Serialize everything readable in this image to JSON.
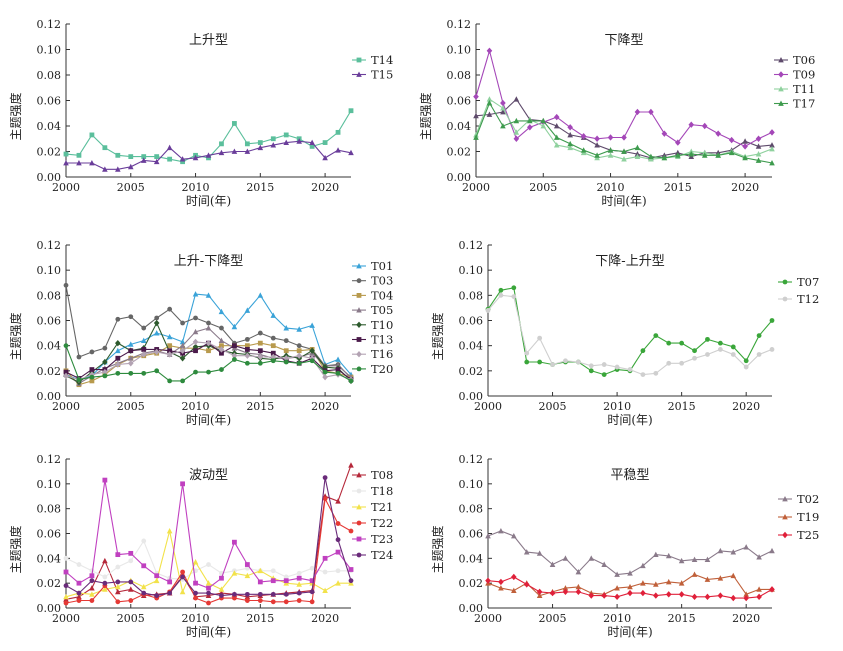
{
  "chart_data": [
    {
      "type": "line",
      "title": "上升型",
      "xlabel": "时间(年)",
      "ylabel": "主题强度",
      "xlim": [
        2000,
        2022
      ],
      "ylim": [
        0,
        0.12
      ],
      "xticks": [
        "2000",
        "2005",
        "2010",
        "2015",
        "2020"
      ],
      "yticks": [
        "0.00",
        "0.02",
        "0.04",
        "0.06",
        "0.08",
        "0.10",
        "0.12"
      ],
      "legend": "right",
      "x": [
        2000,
        2001,
        2002,
        2003,
        2004,
        2005,
        2006,
        2007,
        2008,
        2009,
        2010,
        2011,
        2012,
        2013,
        2014,
        2015,
        2016,
        2017,
        2018,
        2019,
        2020,
        2021,
        2022
      ],
      "series": [
        {
          "name": "T14",
          "color": "#5bbf9c",
          "marker": "square",
          "values": [
            0.018,
            0.017,
            0.033,
            0.023,
            0.017,
            0.016,
            0.016,
            0.016,
            0.014,
            0.012,
            0.017,
            0.015,
            0.026,
            0.042,
            0.026,
            0.027,
            0.03,
            0.033,
            0.03,
            0.024,
            0.027,
            0.035,
            0.052
          ]
        },
        {
          "name": "T15",
          "color": "#6a3d9a",
          "marker": "triangle",
          "values": [
            0.011,
            0.011,
            0.011,
            0.006,
            0.006,
            0.008,
            0.013,
            0.012,
            0.023,
            0.014,
            0.015,
            0.017,
            0.019,
            0.02,
            0.02,
            0.023,
            0.025,
            0.027,
            0.028,
            0.027,
            0.015,
            0.021,
            0.019
          ]
        }
      ]
    },
    {
      "type": "line",
      "title": "下降型",
      "xlabel": "时间(年)",
      "ylabel": "主题强度",
      "xlim": [
        2000,
        2022
      ],
      "ylim": [
        0,
        0.12
      ],
      "xticks": [
        "2000",
        "2005",
        "2010",
        "2015",
        "2020"
      ],
      "yticks": [
        "0.00",
        "0.02",
        "0.04",
        "0.06",
        "0.08",
        "0.10",
        "0.12"
      ],
      "legend": "right",
      "x": [
        2000,
        2001,
        2002,
        2003,
        2004,
        2005,
        2006,
        2007,
        2008,
        2009,
        2010,
        2011,
        2012,
        2013,
        2014,
        2015,
        2016,
        2017,
        2018,
        2019,
        2020,
        2021,
        2022
      ],
      "series": [
        {
          "name": "T06",
          "color": "#5e4a6b",
          "marker": "triangle",
          "values": [
            0.048,
            0.049,
            0.051,
            0.061,
            0.045,
            0.044,
            0.04,
            0.033,
            0.031,
            0.025,
            0.021,
            0.02,
            0.018,
            0.015,
            0.017,
            0.019,
            0.016,
            0.019,
            0.019,
            0.021,
            0.028,
            0.024,
            0.025
          ]
        },
        {
          "name": "T09",
          "color": "#a447b8",
          "marker": "diamond",
          "values": [
            0.063,
            0.099,
            0.058,
            0.03,
            0.039,
            0.043,
            0.047,
            0.039,
            0.032,
            0.03,
            0.031,
            0.031,
            0.051,
            0.051,
            0.034,
            0.027,
            0.041,
            0.04,
            0.034,
            0.029,
            0.024,
            0.03,
            0.035
          ]
        },
        {
          "name": "T11",
          "color": "#8fd19e",
          "marker": "triangle",
          "values": [
            0.033,
            0.061,
            0.054,
            0.035,
            0.045,
            0.04,
            0.025,
            0.023,
            0.019,
            0.015,
            0.017,
            0.014,
            0.016,
            0.014,
            0.015,
            0.016,
            0.02,
            0.019,
            0.017,
            0.02,
            0.016,
            0.018,
            0.022
          ]
        },
        {
          "name": "T17",
          "color": "#3e9b4e",
          "marker": "triangle",
          "values": [
            0.031,
            0.058,
            0.04,
            0.044,
            0.044,
            0.044,
            0.031,
            0.026,
            0.021,
            0.017,
            0.021,
            0.02,
            0.023,
            0.016,
            0.015,
            0.017,
            0.018,
            0.017,
            0.017,
            0.019,
            0.015,
            0.013,
            0.011
          ]
        }
      ]
    },
    {
      "type": "line",
      "title": "上升-下降型",
      "xlabel": "时间(年)",
      "ylabel": "主题强度",
      "xlim": [
        2000,
        2022
      ],
      "ylim": [
        0,
        0.12
      ],
      "xticks": [
        "2000",
        "2005",
        "2010",
        "2015",
        "2020"
      ],
      "yticks": [
        "0.00",
        "0.02",
        "0.04",
        "0.06",
        "0.08",
        "0.10",
        "0.12"
      ],
      "legend": "right",
      "x": [
        2000,
        2001,
        2002,
        2003,
        2004,
        2005,
        2006,
        2007,
        2008,
        2009,
        2010,
        2011,
        2012,
        2013,
        2014,
        2015,
        2016,
        2017,
        2018,
        2019,
        2020,
        2021,
        2022
      ],
      "series": [
        {
          "name": "T01",
          "color": "#3aa3d8",
          "marker": "triangle",
          "values": [
            0.017,
            0.013,
            0.016,
            0.027,
            0.036,
            0.041,
            0.044,
            0.05,
            0.047,
            0.043,
            0.081,
            0.08,
            0.067,
            0.055,
            0.068,
            0.08,
            0.064,
            0.054,
            0.053,
            0.056,
            0.025,
            0.029,
            0.017
          ]
        },
        {
          "name": "T03",
          "color": "#666666",
          "marker": "circle",
          "values": [
            0.088,
            0.031,
            0.035,
            0.038,
            0.061,
            0.063,
            0.054,
            0.062,
            0.069,
            0.058,
            0.062,
            0.058,
            0.054,
            0.042,
            0.045,
            0.05,
            0.046,
            0.044,
            0.04,
            0.037,
            0.024,
            0.025,
            0.014
          ]
        },
        {
          "name": "T04",
          "color": "#b89a4d",
          "marker": "square",
          "values": [
            0.02,
            0.009,
            0.012,
            0.017,
            0.025,
            0.03,
            0.032,
            0.034,
            0.04,
            0.038,
            0.038,
            0.036,
            0.04,
            0.04,
            0.04,
            0.042,
            0.04,
            0.036,
            0.036,
            0.037,
            0.02,
            0.018,
            0.015
          ]
        },
        {
          "name": "T05",
          "color": "#8a7a8a",
          "marker": "triangle",
          "values": [
            0.017,
            0.01,
            0.016,
            0.022,
            0.026,
            0.03,
            0.034,
            0.036,
            0.033,
            0.04,
            0.051,
            0.054,
            0.044,
            0.038,
            0.034,
            0.033,
            0.03,
            0.03,
            0.031,
            0.034,
            0.024,
            0.024,
            0.015
          ]
        },
        {
          "name": "T10",
          "color": "#2d5a2d",
          "marker": "diamond",
          "values": [
            0.016,
            0.011,
            0.019,
            0.027,
            0.042,
            0.036,
            0.038,
            0.058,
            0.035,
            0.03,
            0.039,
            0.04,
            0.036,
            0.034,
            0.033,
            0.03,
            0.029,
            0.032,
            0.03,
            0.036,
            0.023,
            0.022,
            0.012
          ]
        },
        {
          "name": "T13",
          "color": "#4a1a4a",
          "marker": "square",
          "values": [
            0.019,
            0.014,
            0.021,
            0.021,
            0.03,
            0.036,
            0.037,
            0.037,
            0.036,
            0.034,
            0.036,
            0.042,
            0.034,
            0.04,
            0.037,
            0.036,
            0.034,
            0.028,
            0.026,
            0.03,
            0.02,
            0.021,
            0.013
          ]
        },
        {
          "name": "T16",
          "color": "#b3a3b3",
          "marker": "diamond",
          "values": [
            0.016,
            0.013,
            0.017,
            0.019,
            0.025,
            0.026,
            0.033,
            0.035,
            0.033,
            0.036,
            0.043,
            0.042,
            0.037,
            0.032,
            0.032,
            0.031,
            0.031,
            0.03,
            0.032,
            0.03,
            0.015,
            0.017,
            0.013
          ]
        },
        {
          "name": "T20",
          "color": "#2e8b3e",
          "marker": "circle",
          "values": [
            0.04,
            0.013,
            0.015,
            0.016,
            0.018,
            0.018,
            0.018,
            0.02,
            0.012,
            0.012,
            0.019,
            0.019,
            0.021,
            0.029,
            0.026,
            0.026,
            0.028,
            0.027,
            0.026,
            0.028,
            0.019,
            0.018,
            0.012
          ]
        }
      ]
    },
    {
      "type": "line",
      "title": "下降-上升型",
      "xlabel": "时间(年)",
      "ylabel": "主题强度",
      "xlim": [
        2000,
        2022
      ],
      "ylim": [
        0,
        0.12
      ],
      "xticks": [
        "2000",
        "2005",
        "2010",
        "2015",
        "2020"
      ],
      "yticks": [
        "0.00",
        "0.02",
        "0.04",
        "0.06",
        "0.08",
        "0.10",
        "0.12"
      ],
      "legend": "right",
      "x": [
        2000,
        2001,
        2002,
        2003,
        2004,
        2005,
        2006,
        2007,
        2008,
        2009,
        2010,
        2011,
        2012,
        2013,
        2014,
        2015,
        2016,
        2017,
        2018,
        2019,
        2020,
        2021,
        2022
      ],
      "series": [
        {
          "name": "T07",
          "color": "#3aa63a",
          "marker": "circle",
          "values": [
            0.069,
            0.084,
            0.086,
            0.027,
            0.027,
            0.025,
            0.027,
            0.027,
            0.02,
            0.017,
            0.021,
            0.02,
            0.036,
            0.048,
            0.042,
            0.042,
            0.036,
            0.045,
            0.042,
            0.039,
            0.028,
            0.048,
            0.06
          ]
        },
        {
          "name": "T12",
          "color": "#cfcfcf",
          "marker": "circle",
          "values": [
            0.068,
            0.08,
            0.079,
            0.034,
            0.046,
            0.025,
            0.028,
            0.027,
            0.024,
            0.025,
            0.023,
            0.021,
            0.017,
            0.018,
            0.026,
            0.026,
            0.03,
            0.033,
            0.037,
            0.033,
            0.023,
            0.033,
            0.037
          ]
        }
      ]
    },
    {
      "type": "line",
      "title": "波动型",
      "xlabel": "时间(年)",
      "ylabel": "主题强度",
      "xlim": [
        2000,
        2022
      ],
      "ylim": [
        0,
        0.12
      ],
      "xticks": [
        "2000",
        "2005",
        "2010",
        "2015",
        "2020"
      ],
      "yticks": [
        "0.00",
        "0.02",
        "0.04",
        "0.06",
        "0.08",
        "0.10",
        "0.12"
      ],
      "legend": "right",
      "x": [
        2000,
        2001,
        2002,
        2003,
        2004,
        2005,
        2006,
        2007,
        2008,
        2009,
        2010,
        2011,
        2012,
        2013,
        2014,
        2015,
        2016,
        2017,
        2018,
        2019,
        2020,
        2021,
        2022
      ],
      "series": [
        {
          "name": "T08",
          "color": "#b5283a",
          "marker": "triangle",
          "values": [
            0.007,
            0.009,
            0.016,
            0.038,
            0.013,
            0.015,
            0.01,
            0.011,
            0.012,
            0.026,
            0.009,
            0.01,
            0.012,
            0.011,
            0.009,
            0.01,
            0.011,
            0.012,
            0.013,
            0.014,
            0.09,
            0.086,
            0.115
          ]
        },
        {
          "name": "T18",
          "color": "#e8e8e8",
          "marker": "circle",
          "values": [
            0.04,
            0.035,
            0.03,
            0.025,
            0.033,
            0.038,
            0.054,
            0.028,
            0.024,
            0.023,
            0.03,
            0.035,
            0.028,
            0.03,
            0.032,
            0.03,
            0.03,
            0.025,
            0.028,
            0.032,
            0.029,
            0.03,
            0.03
          ]
        },
        {
          "name": "T21",
          "color": "#f2e24a",
          "marker": "triangle",
          "values": [
            0.009,
            0.012,
            0.011,
            0.015,
            0.017,
            0.022,
            0.017,
            0.022,
            0.062,
            0.013,
            0.037,
            0.02,
            0.015,
            0.028,
            0.026,
            0.03,
            0.024,
            0.02,
            0.019,
            0.02,
            0.014,
            0.02,
            0.02
          ]
        },
        {
          "name": "T22",
          "color": "#e53935",
          "marker": "circle",
          "values": [
            0.004,
            0.006,
            0.006,
            0.018,
            0.005,
            0.006,
            0.011,
            0.008,
            0.013,
            0.029,
            0.008,
            0.004,
            0.008,
            0.008,
            0.006,
            0.006,
            0.005,
            0.005,
            0.006,
            0.005,
            0.088,
            0.068,
            0.062
          ]
        },
        {
          "name": "T23",
          "color": "#c040c0",
          "marker": "square",
          "values": [
            0.029,
            0.02,
            0.026,
            0.103,
            0.043,
            0.044,
            0.034,
            0.026,
            0.021,
            0.1,
            0.02,
            0.016,
            0.024,
            0.053,
            0.035,
            0.021,
            0.022,
            0.022,
            0.024,
            0.022,
            0.04,
            0.045,
            0.031
          ]
        },
        {
          "name": "T24",
          "color": "#6a2b7a",
          "marker": "circle",
          "values": [
            0.018,
            0.012,
            0.022,
            0.02,
            0.021,
            0.021,
            0.012,
            0.01,
            0.012,
            0.025,
            0.012,
            0.012,
            0.01,
            0.011,
            0.011,
            0.011,
            0.011,
            0.011,
            0.012,
            0.013,
            0.105,
            0.055,
            0.022
          ]
        }
      ]
    },
    {
      "type": "line",
      "title": "平稳型",
      "xlabel": "时间(年)",
      "ylabel": "主题强度",
      "xlim": [
        2000,
        2022
      ],
      "ylim": [
        0,
        0.12
      ],
      "xticks": [
        "2000",
        "2005",
        "2010",
        "2015",
        "2020"
      ],
      "yticks": [
        "0.00",
        "0.02",
        "0.04",
        "0.06",
        "0.08",
        "0.10",
        "0.12"
      ],
      "legend": "right",
      "x": [
        2000,
        2001,
        2002,
        2003,
        2004,
        2005,
        2006,
        2007,
        2008,
        2009,
        2010,
        2011,
        2012,
        2013,
        2014,
        2015,
        2016,
        2017,
        2018,
        2019,
        2020,
        2021,
        2022
      ],
      "series": [
        {
          "name": "T02",
          "color": "#8a7a8a",
          "marker": "triangle",
          "values": [
            0.058,
            0.062,
            0.058,
            0.045,
            0.044,
            0.035,
            0.04,
            0.029,
            0.04,
            0.035,
            0.027,
            0.028,
            0.034,
            0.043,
            0.042,
            0.038,
            0.039,
            0.039,
            0.046,
            0.045,
            0.049,
            0.041,
            0.046
          ]
        },
        {
          "name": "T19",
          "color": "#c0603a",
          "marker": "triangle",
          "values": [
            0.02,
            0.016,
            0.014,
            0.02,
            0.01,
            0.013,
            0.016,
            0.017,
            0.012,
            0.011,
            0.016,
            0.017,
            0.02,
            0.019,
            0.021,
            0.02,
            0.027,
            0.023,
            0.024,
            0.026,
            0.011,
            0.015,
            0.015
          ]
        },
        {
          "name": "T25",
          "color": "#e0203a",
          "marker": "diamond",
          "values": [
            0.022,
            0.021,
            0.025,
            0.019,
            0.013,
            0.012,
            0.013,
            0.013,
            0.01,
            0.01,
            0.009,
            0.012,
            0.012,
            0.01,
            0.011,
            0.011,
            0.009,
            0.009,
            0.01,
            0.008,
            0.008,
            0.009,
            0.015
          ]
        }
      ]
    }
  ]
}
